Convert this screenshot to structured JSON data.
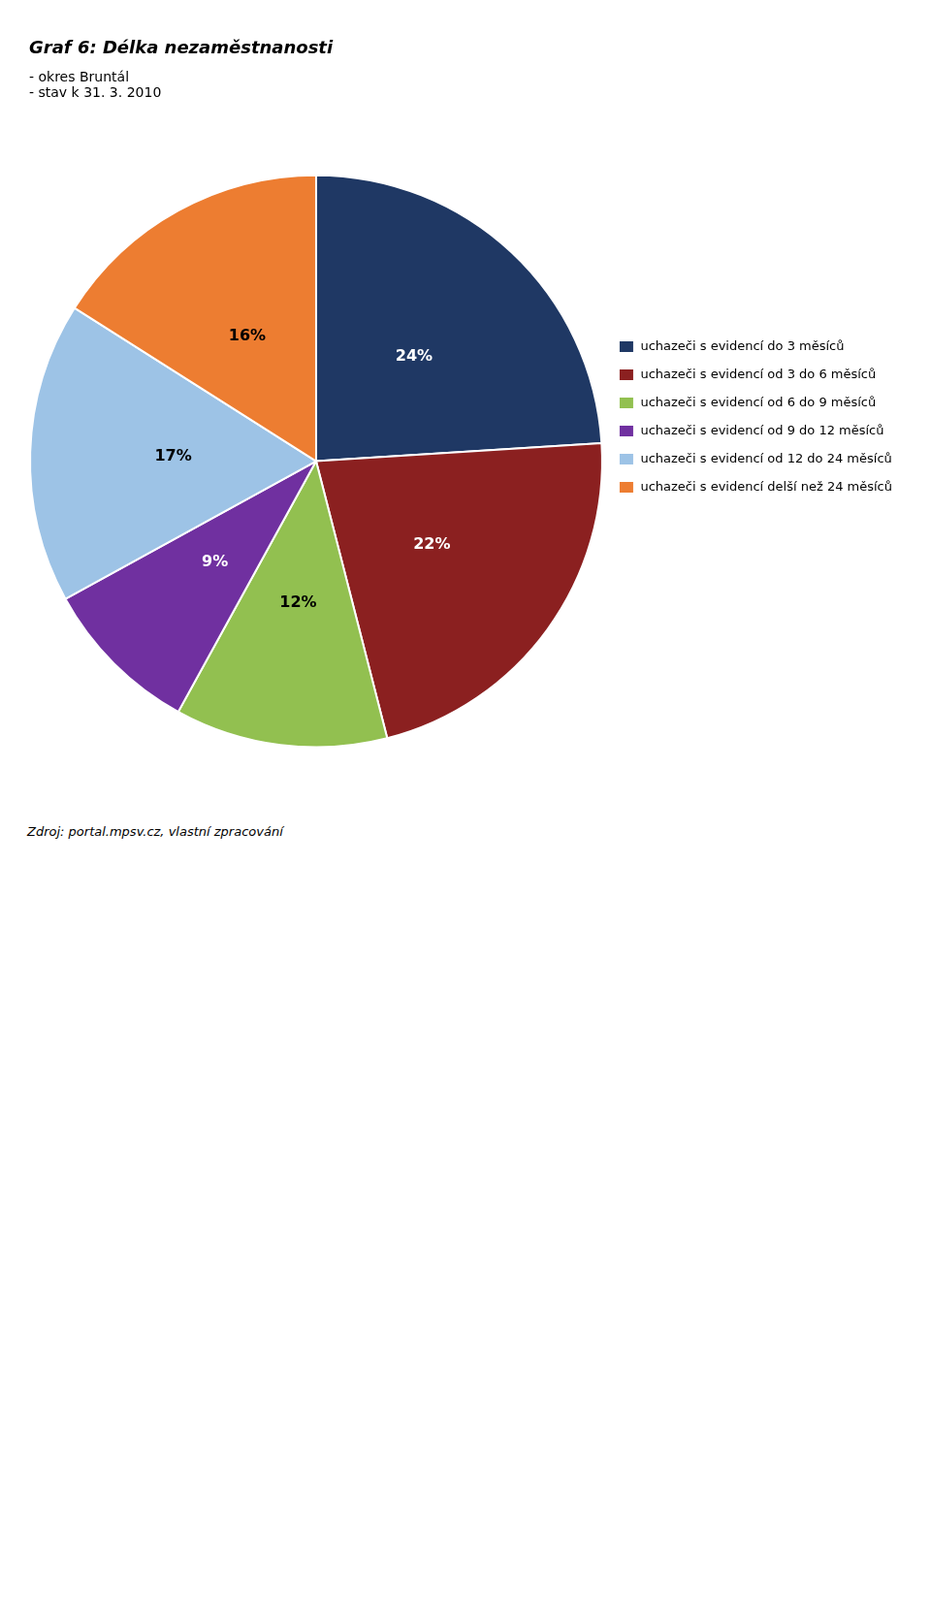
{
  "chart_data": {
    "type": "pie",
    "title": "Graf 6: Délka nezaměstnanosti",
    "subtitle": [
      "- okres Bruntál",
      "- stav k 31. 3. 2010"
    ],
    "categories": [
      "uchazeči s evidencí do 3 měsíců",
      "uchazeči s evidencí od 3 do 6 měsíců",
      "uchazeči s evidencí od 6 do 9 měsíců",
      "uchazeči s evidencí od 9 do 12 měsíců",
      "uchazeči s evidencí od 12 do 24 měsíců",
      "uchazeči s evidencí delší než 24 měsíců"
    ],
    "values": [
      24,
      22,
      12,
      9,
      17,
      16
    ],
    "value_labels": [
      "24%",
      "22%",
      "12%",
      "9%",
      "17%",
      "16%"
    ],
    "colors": [
      "#1f3864",
      "#8b2020",
      "#92c050",
      "#7030a0",
      "#9dc3e6",
      "#ed7d31"
    ],
    "data_labels": true,
    "legend": "right",
    "annotations": [
      "Zdroj: portal.mpsv.cz, vlastní zpracování"
    ]
  }
}
